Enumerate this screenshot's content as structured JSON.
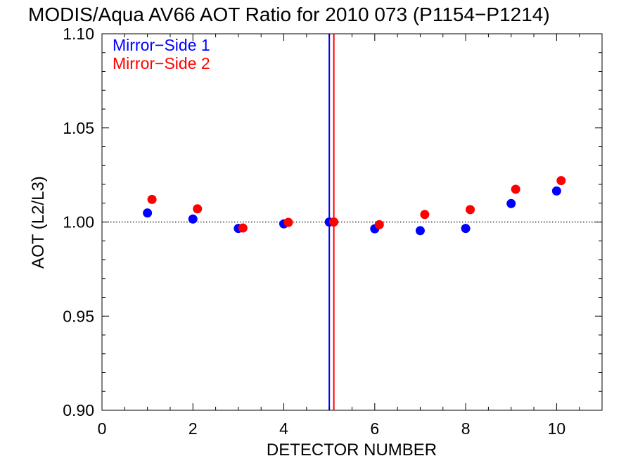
{
  "chart_data": {
    "type": "scatter",
    "title": "MODIS/Aqua AV66 AOT Ratio for 2010 073 (P1154−P1214)",
    "xlabel": "DETECTOR NUMBER",
    "ylabel": "AOT (L2/L3)",
    "xlim": [
      0,
      11
    ],
    "ylim": [
      0.9,
      1.1
    ],
    "x_ticks": [
      0,
      2,
      4,
      6,
      8,
      10
    ],
    "x_tick_labels": [
      "0",
      "2",
      "4",
      "6",
      "8",
      "10"
    ],
    "y_ticks": [
      0.9,
      0.95,
      1.0,
      1.05,
      1.1
    ],
    "y_tick_labels": [
      "0.90",
      "0.95",
      "1.00",
      "1.05",
      "1.10"
    ],
    "reference_line": {
      "y": 1.0,
      "style": "dotted"
    },
    "vertical_markers": [
      {
        "x": 5.0,
        "color": "#0000ff"
      },
      {
        "x": 5.1,
        "color": "#ff0000"
      }
    ],
    "legend_placement": "top-left",
    "grid": false,
    "series": [
      {
        "name": "Mirror−Side 1",
        "color": "#0000ff",
        "points": [
          {
            "x": 1,
            "y": 1.0048
          },
          {
            "x": 2,
            "y": 1.0016
          },
          {
            "x": 3,
            "y": 0.9966
          },
          {
            "x": 4,
            "y": 0.999
          },
          {
            "x": 5,
            "y": 1.0
          },
          {
            "x": 6,
            "y": 0.9964
          },
          {
            "x": 7,
            "y": 0.9954
          },
          {
            "x": 8,
            "y": 0.9966
          },
          {
            "x": 9,
            "y": 1.0098
          },
          {
            "x": 10,
            "y": 1.0165
          }
        ]
      },
      {
        "name": "Mirror−Side 2",
        "color": "#ff0000",
        "points": [
          {
            "x": 1.1,
            "y": 1.012
          },
          {
            "x": 2.1,
            "y": 1.007
          },
          {
            "x": 3.1,
            "y": 0.9968
          },
          {
            "x": 4.1,
            "y": 0.9998
          },
          {
            "x": 5.1,
            "y": 1.0
          },
          {
            "x": 6.1,
            "y": 0.9986
          },
          {
            "x": 7.1,
            "y": 1.004
          },
          {
            "x": 8.1,
            "y": 1.0066
          },
          {
            "x": 9.1,
            "y": 1.0174
          },
          {
            "x": 10.1,
            "y": 1.022
          }
        ]
      }
    ]
  }
}
